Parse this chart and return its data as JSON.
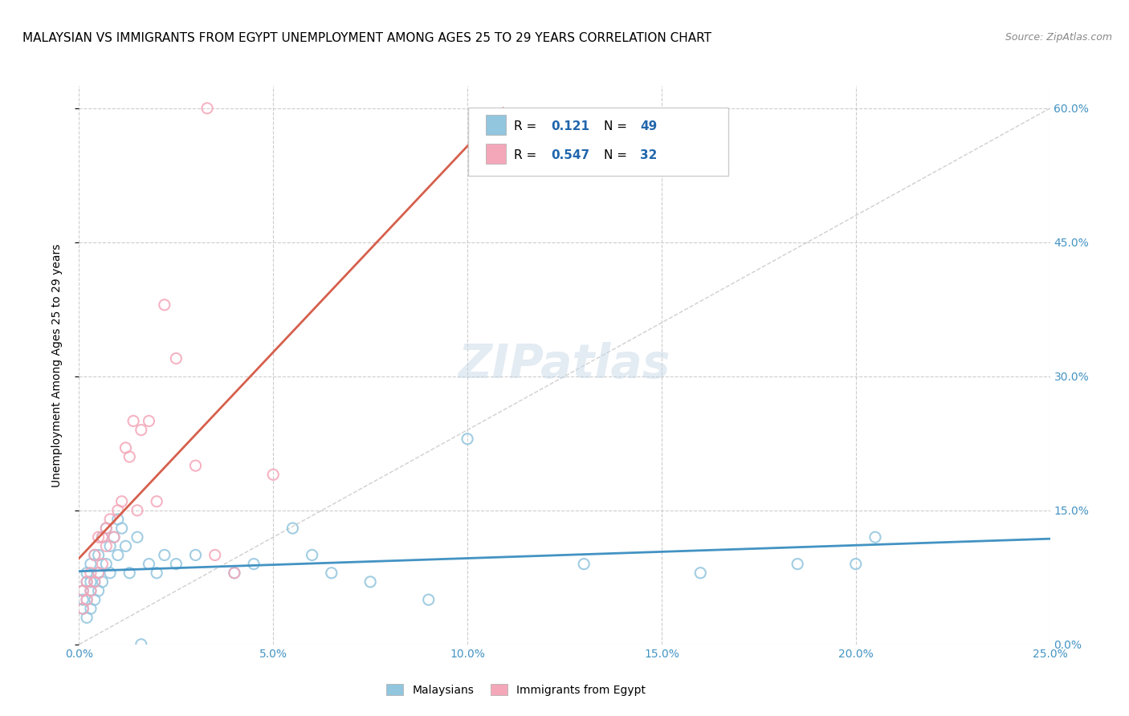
{
  "title": "MALAYSIAN VS IMMIGRANTS FROM EGYPT UNEMPLOYMENT AMONG AGES 25 TO 29 YEARS CORRELATION CHART",
  "source": "Source: ZipAtlas.com",
  "ylabel": "Unemployment Among Ages 25 to 29 years",
  "xlabel_ticks": [
    "0.0%",
    "5.0%",
    "10.0%",
    "15.0%",
    "20.0%",
    "25.0%"
  ],
  "ylabel_ticks_right": [
    "60.0%",
    "45.0%",
    "30.0%",
    "15.0%",
    "0.0%"
  ],
  "xlim": [
    0.0,
    0.25
  ],
  "ylim": [
    0.0,
    0.625
  ],
  "title_fontsize": 11,
  "source_fontsize": 9,
  "color_blue": "#92c5de",
  "color_pink": "#f4a7b9",
  "color_blue_line": "#4393c3",
  "color_pink_line": "#d6604d",
  "color_diag": "#b0b0b0",
  "color_axis_blue": "#4393c3",
  "color_legend_blue": "#4393c3",
  "color_legend_text": "#2166ac",
  "background_color": "#ffffff",
  "grid_color": "#cccccc",
  "malaysians_x": [
    0.001,
    0.001,
    0.001,
    0.002,
    0.002,
    0.002,
    0.002,
    0.003,
    0.003,
    0.003,
    0.003,
    0.004,
    0.004,
    0.004,
    0.005,
    0.005,
    0.005,
    0.006,
    0.006,
    0.007,
    0.007,
    0.008,
    0.008,
    0.009,
    0.01,
    0.01,
    0.011,
    0.012,
    0.013,
    0.015,
    0.016,
    0.018,
    0.02,
    0.022,
    0.025,
    0.03,
    0.04,
    0.045,
    0.055,
    0.06,
    0.065,
    0.075,
    0.09,
    0.1,
    0.13,
    0.16,
    0.185,
    0.2,
    0.205
  ],
  "malaysians_y": [
    0.04,
    0.05,
    0.06,
    0.03,
    0.05,
    0.07,
    0.08,
    0.04,
    0.06,
    0.07,
    0.09,
    0.05,
    0.07,
    0.1,
    0.06,
    0.08,
    0.1,
    0.07,
    0.12,
    0.09,
    0.13,
    0.08,
    0.11,
    0.12,
    0.14,
    0.1,
    0.13,
    0.11,
    0.08,
    0.12,
    0.0,
    0.09,
    0.08,
    0.1,
    0.09,
    0.1,
    0.08,
    0.09,
    0.13,
    0.1,
    0.08,
    0.07,
    0.05,
    0.23,
    0.09,
    0.08,
    0.09,
    0.09,
    0.12
  ],
  "egypt_x": [
    0.001,
    0.001,
    0.002,
    0.002,
    0.003,
    0.003,
    0.004,
    0.004,
    0.005,
    0.005,
    0.006,
    0.006,
    0.007,
    0.007,
    0.008,
    0.009,
    0.01,
    0.011,
    0.012,
    0.013,
    0.014,
    0.015,
    0.016,
    0.018,
    0.02,
    0.022,
    0.025,
    0.03,
    0.035,
    0.04,
    0.033,
    0.05
  ],
  "egypt_y": [
    0.04,
    0.06,
    0.05,
    0.07,
    0.06,
    0.08,
    0.07,
    0.1,
    0.08,
    0.12,
    0.09,
    0.12,
    0.11,
    0.13,
    0.14,
    0.12,
    0.15,
    0.16,
    0.22,
    0.21,
    0.25,
    0.15,
    0.24,
    0.25,
    0.16,
    0.38,
    0.32,
    0.2,
    0.1,
    0.08,
    0.6,
    0.19
  ]
}
